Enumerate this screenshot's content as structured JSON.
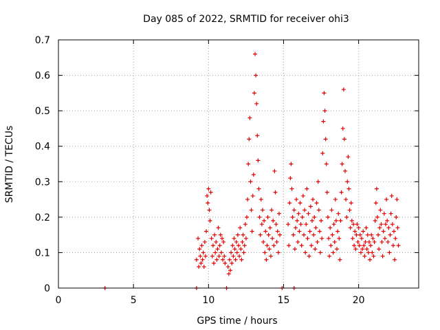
{
  "chart_data": {
    "type": "scatter",
    "title": "Day 085 of 2022, SRMTID for receiver ohi3",
    "xlabel": "GPS time / hours",
    "ylabel": "SRMTID / TECUs",
    "xlim": [
      0,
      24
    ],
    "ylim": [
      0,
      0.7
    ],
    "xticks": [
      "0",
      "5",
      "10",
      "15",
      "20"
    ],
    "yticks": [
      "0",
      "0.1",
      "0.2",
      "0.3",
      "0.4",
      "0.5",
      "0.6",
      "0.7"
    ],
    "grid": true,
    "marker": "plus",
    "color": "#e00000",
    "series": [
      {
        "name": "SRMTID",
        "points": [
          [
            3.1,
            0.0
          ],
          [
            9.2,
            0.0
          ],
          [
            11.2,
            0.0
          ],
          [
            14.9,
            0.0
          ],
          [
            15.7,
            0.0
          ],
          [
            9.2,
            0.08
          ],
          [
            9.3,
            0.14
          ],
          [
            9.35,
            0.06
          ],
          [
            9.4,
            0.11
          ],
          [
            9.45,
            0.09
          ],
          [
            9.5,
            0.07
          ],
          [
            9.55,
            0.12
          ],
          [
            9.6,
            0.08
          ],
          [
            9.65,
            0.1
          ],
          [
            9.7,
            0.06
          ],
          [
            9.75,
            0.13
          ],
          [
            9.8,
            0.09
          ],
          [
            9.85,
            0.16
          ],
          [
            9.9,
            0.26
          ],
          [
            9.95,
            0.24
          ],
          [
            10.0,
            0.28
          ],
          [
            10.05,
            0.22
          ],
          [
            10.1,
            0.19
          ],
          [
            10.15,
            0.27
          ],
          [
            10.2,
            0.14
          ],
          [
            10.25,
            0.09
          ],
          [
            10.3,
            0.12
          ],
          [
            10.35,
            0.07
          ],
          [
            10.4,
            0.15
          ],
          [
            10.45,
            0.1
          ],
          [
            10.5,
            0.13
          ],
          [
            10.55,
            0.08
          ],
          [
            10.6,
            0.11
          ],
          [
            10.65,
            0.17
          ],
          [
            10.7,
            0.09
          ],
          [
            10.75,
            0.12
          ],
          [
            10.8,
            0.15
          ],
          [
            10.85,
            0.1
          ],
          [
            10.9,
            0.14
          ],
          [
            10.95,
            0.08
          ],
          [
            11.0,
            0.13
          ],
          [
            11.05,
            0.09
          ],
          [
            11.1,
            0.07
          ],
          [
            11.3,
            0.06
          ],
          [
            11.35,
            0.04
          ],
          [
            11.4,
            0.08
          ],
          [
            11.45,
            0.05
          ],
          [
            11.5,
            0.1
          ],
          [
            11.55,
            0.07
          ],
          [
            11.6,
            0.12
          ],
          [
            11.65,
            0.09
          ],
          [
            11.7,
            0.14
          ],
          [
            11.75,
            0.11
          ],
          [
            11.8,
            0.08
          ],
          [
            11.85,
            0.13
          ],
          [
            11.9,
            0.1
          ],
          [
            11.95,
            0.15
          ],
          [
            12.0,
            0.12
          ],
          [
            12.05,
            0.09
          ],
          [
            12.1,
            0.17
          ],
          [
            12.15,
            0.11
          ],
          [
            12.2,
            0.08
          ],
          [
            12.25,
            0.13
          ],
          [
            12.3,
            0.15
          ],
          [
            12.35,
            0.1
          ],
          [
            12.4,
            0.12
          ],
          [
            12.45,
            0.18
          ],
          [
            12.5,
            0.14
          ],
          [
            12.55,
            0.2
          ],
          [
            12.6,
            0.25
          ],
          [
            12.65,
            0.35
          ],
          [
            12.7,
            0.42
          ],
          [
            12.75,
            0.48
          ],
          [
            12.8,
            0.3
          ],
          [
            12.85,
            0.22
          ],
          [
            12.9,
            0.16
          ],
          [
            12.95,
            0.26
          ],
          [
            13.0,
            0.32
          ],
          [
            13.05,
            0.55
          ],
          [
            13.1,
            0.66
          ],
          [
            13.15,
            0.6
          ],
          [
            13.2,
            0.52
          ],
          [
            13.25,
            0.43
          ],
          [
            13.3,
            0.36
          ],
          [
            13.35,
            0.28
          ],
          [
            13.4,
            0.2
          ],
          [
            13.45,
            0.15
          ],
          [
            13.5,
            0.25
          ],
          [
            13.55,
            0.18
          ],
          [
            13.6,
            0.22
          ],
          [
            13.65,
            0.13
          ],
          [
            13.7,
            0.19
          ],
          [
            13.75,
            0.1
          ],
          [
            13.8,
            0.16
          ],
          [
            13.85,
            0.08
          ],
          [
            13.9,
            0.12
          ],
          [
            13.95,
            0.2
          ],
          [
            14.0,
            0.15
          ],
          [
            14.05,
            0.11
          ],
          [
            14.1,
            0.17
          ],
          [
            14.15,
            0.09
          ],
          [
            14.2,
            0.22
          ],
          [
            14.25,
            0.14
          ],
          [
            14.3,
            0.19
          ],
          [
            14.35,
            0.12
          ],
          [
            14.4,
            0.33
          ],
          [
            14.45,
            0.27
          ],
          [
            14.5,
            0.18
          ],
          [
            14.55,
            0.13
          ],
          [
            14.6,
            0.16
          ],
          [
            14.65,
            0.1
          ],
          [
            14.7,
            0.21
          ],
          [
            14.75,
            0.15
          ],
          [
            15.3,
            0.18
          ],
          [
            15.35,
            0.12
          ],
          [
            15.4,
            0.24
          ],
          [
            15.45,
            0.31
          ],
          [
            15.5,
            0.35
          ],
          [
            15.55,
            0.28
          ],
          [
            15.6,
            0.2
          ],
          [
            15.65,
            0.15
          ],
          [
            15.7,
            0.22
          ],
          [
            15.75,
            0.11
          ],
          [
            15.8,
            0.17
          ],
          [
            15.85,
            0.25
          ],
          [
            15.9,
            0.19
          ],
          [
            15.95,
            0.13
          ],
          [
            16.0,
            0.21
          ],
          [
            16.05,
            0.16
          ],
          [
            16.1,
            0.24
          ],
          [
            16.15,
            0.18
          ],
          [
            16.2,
            0.12
          ],
          [
            16.25,
            0.2
          ],
          [
            16.3,
            0.26
          ],
          [
            16.35,
            0.15
          ],
          [
            16.4,
            0.22
          ],
          [
            16.45,
            0.1
          ],
          [
            16.5,
            0.18
          ],
          [
            16.55,
            0.28
          ],
          [
            16.6,
            0.14
          ],
          [
            16.65,
            0.21
          ],
          [
            16.7,
            0.09
          ],
          [
            16.75,
            0.16
          ],
          [
            16.8,
            0.23
          ],
          [
            16.85,
            0.12
          ],
          [
            16.9,
            0.19
          ],
          [
            16.95,
            0.25
          ],
          [
            17.0,
            0.15
          ],
          [
            17.05,
            0.2
          ],
          [
            17.1,
            0.11
          ],
          [
            17.15,
            0.17
          ],
          [
            17.2,
            0.24
          ],
          [
            17.25,
            0.13
          ],
          [
            17.3,
            0.3
          ],
          [
            17.35,
            0.22
          ],
          [
            17.4,
            0.16
          ],
          [
            17.45,
            0.1
          ],
          [
            17.5,
            0.19
          ],
          [
            17.55,
            0.14
          ],
          [
            17.6,
            0.38
          ],
          [
            17.65,
            0.47
          ],
          [
            17.7,
            0.55
          ],
          [
            17.75,
            0.5
          ],
          [
            17.8,
            0.42
          ],
          [
            17.85,
            0.35
          ],
          [
            17.9,
            0.27
          ],
          [
            17.95,
            0.2
          ],
          [
            18.0,
            0.14
          ],
          [
            18.05,
            0.09
          ],
          [
            18.1,
            0.17
          ],
          [
            18.15,
            0.12
          ],
          [
            18.2,
            0.22
          ],
          [
            18.25,
            0.15
          ],
          [
            18.3,
            0.1
          ],
          [
            18.35,
            0.18
          ],
          [
            18.4,
            0.13
          ],
          [
            18.45,
            0.25
          ],
          [
            18.5,
            0.19
          ],
          [
            18.55,
            0.11
          ],
          [
            18.6,
            0.16
          ],
          [
            18.65,
            0.21
          ],
          [
            18.7,
            0.14
          ],
          [
            18.75,
            0.08
          ],
          [
            18.8,
            0.19
          ],
          [
            18.85,
            0.27
          ],
          [
            18.9,
            0.35
          ],
          [
            18.95,
            0.45
          ],
          [
            19.0,
            0.56
          ],
          [
            19.05,
            0.42
          ],
          [
            19.1,
            0.33
          ],
          [
            19.15,
            0.25
          ],
          [
            19.2,
            0.2
          ],
          [
            19.25,
            0.3
          ],
          [
            19.3,
            0.37
          ],
          [
            19.35,
            0.28
          ],
          [
            19.4,
            0.22
          ],
          [
            19.45,
            0.17
          ],
          [
            19.5,
            0.24
          ],
          [
            19.55,
            0.19
          ],
          [
            19.6,
            0.14
          ],
          [
            19.65,
            0.18
          ],
          [
            19.7,
            0.12
          ],
          [
            19.75,
            0.16
          ],
          [
            19.8,
            0.11
          ],
          [
            19.85,
            0.15
          ],
          [
            19.9,
            0.18
          ],
          [
            19.95,
            0.13
          ],
          [
            20.0,
            0.17
          ],
          [
            20.05,
            0.12
          ],
          [
            20.1,
            0.15
          ],
          [
            20.15,
            0.1
          ],
          [
            20.2,
            0.14
          ],
          [
            20.25,
            0.11
          ],
          [
            20.3,
            0.16
          ],
          [
            20.35,
            0.12
          ],
          [
            20.4,
            0.09
          ],
          [
            20.45,
            0.13
          ],
          [
            20.5,
            0.17
          ],
          [
            20.55,
            0.11
          ],
          [
            20.6,
            0.15
          ],
          [
            20.65,
            0.1
          ],
          [
            20.7,
            0.13
          ],
          [
            20.75,
            0.08
          ],
          [
            20.8,
            0.12
          ],
          [
            20.85,
            0.15
          ],
          [
            20.9,
            0.1
          ],
          [
            20.95,
            0.14
          ],
          [
            21.0,
            0.09
          ],
          [
            21.05,
            0.13
          ],
          [
            21.1,
            0.19
          ],
          [
            21.15,
            0.24
          ],
          [
            21.2,
            0.28
          ],
          [
            21.25,
            0.2
          ],
          [
            21.3,
            0.15
          ],
          [
            21.35,
            0.11
          ],
          [
            21.4,
            0.17
          ],
          [
            21.45,
            0.22
          ],
          [
            21.5,
            0.18
          ],
          [
            21.55,
            0.13
          ],
          [
            21.6,
            0.09
          ],
          [
            21.65,
            0.16
          ],
          [
            21.7,
            0.21
          ],
          [
            21.75,
            0.14
          ],
          [
            21.8,
            0.18
          ],
          [
            21.85,
            0.25
          ],
          [
            21.9,
            0.19
          ],
          [
            21.95,
            0.13
          ],
          [
            22.0,
            0.17
          ],
          [
            22.05,
            0.1
          ],
          [
            22.1,
            0.15
          ],
          [
            22.15,
            0.21
          ],
          [
            22.2,
            0.26
          ],
          [
            22.25,
            0.18
          ],
          [
            22.3,
            0.12
          ],
          [
            22.35,
            0.16
          ],
          [
            22.4,
            0.08
          ],
          [
            22.45,
            0.14
          ],
          [
            22.5,
            0.2
          ],
          [
            22.55,
            0.25
          ],
          [
            22.6,
            0.17
          ],
          [
            22.65,
            0.12
          ]
        ]
      }
    ]
  }
}
